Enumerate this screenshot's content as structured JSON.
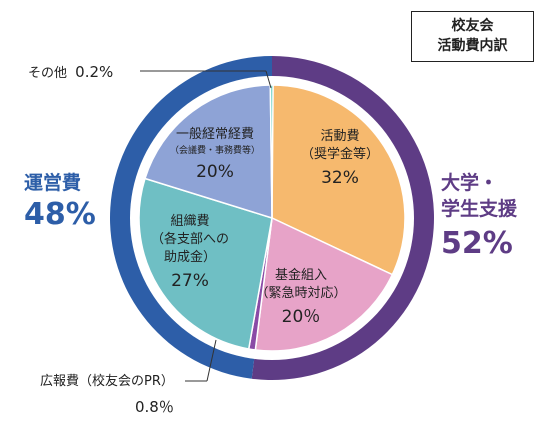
{
  "title_lines": [
    "校友会",
    "活動費内訳"
  ],
  "groups": [
    {
      "name": "運営費",
      "percent": "48%",
      "color": "#2d5ea8"
    },
    {
      "name_lines": [
        "大学・",
        "学生支援"
      ],
      "percent": "52%",
      "color": "#5e3c85"
    }
  ],
  "chart_data": {
    "type": "pie",
    "title": "校友会 活動費内訳",
    "slices": [
      {
        "label": "活動費（奨学金等）",
        "value": 32,
        "color": "#f6b96e",
        "group": "大学・学生支援"
      },
      {
        "label": "基金組入（緊急時対応）",
        "value": 20,
        "color": "#e7a3c8",
        "group": "大学・学生支援"
      },
      {
        "label": "広報費（校友会のPR）",
        "value": 0.8,
        "color": "#8a4aa6",
        "group": "運営費"
      },
      {
        "label": "組織費（各支部への助成金）",
        "value": 27,
        "color": "#6fbfc4",
        "group": "運営費"
      },
      {
        "label": "一般経常経費（会議費・事務費等）",
        "value": 20,
        "color": "#8ea3d6",
        "group": "運営費"
      },
      {
        "label": "その他",
        "value": 0.2,
        "color": "#6fd3c7",
        "group": "運営費"
      }
    ],
    "outer_ring": [
      {
        "label": "大学・学生支援",
        "value": 52,
        "color": "#5e3c85"
      },
      {
        "label": "運営費",
        "value": 48,
        "color": "#2d5ea8"
      }
    ]
  },
  "labels": {
    "katsudo": {
      "name": "活動費",
      "sub": "（奨学金等）",
      "pct": "32%"
    },
    "kikin": {
      "name": "基金組入",
      "sub": "（緊急時対応）",
      "pct": "20％"
    },
    "ippan": {
      "name": "一般経常経費",
      "sub": "（会議費・事務費等）",
      "pct": "20%"
    },
    "soshiki": {
      "name": "組織費",
      "sub1": "（各支部への",
      "sub2": "助成金）",
      "pct": "27%"
    },
    "sonota": {
      "name": "その他",
      "pct": "0.2%"
    },
    "koho": {
      "name": "広報費（校友会のPR）",
      "pct": "0.8％"
    }
  }
}
